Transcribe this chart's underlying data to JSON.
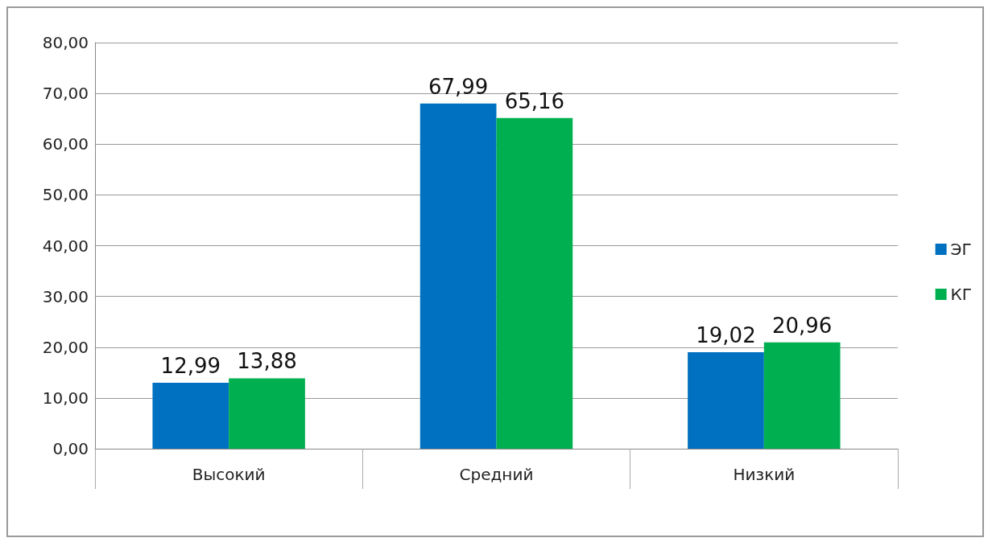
{
  "chart_data": {
    "type": "bar",
    "categories": [
      "Высокий",
      "Средний",
      "Низкий"
    ],
    "series": [
      {
        "name": "ЭГ",
        "color": "#0070c0",
        "values": [
          12.99,
          67.99,
          19.02
        ],
        "value_labels": [
          "12,99",
          "67,99",
          "19,02"
        ]
      },
      {
        "name": "КГ",
        "color": "#00b050",
        "values": [
          13.88,
          65.16,
          20.96
        ],
        "value_labels": [
          "13,88",
          "65,16",
          "20,96"
        ]
      }
    ],
    "ylim": [
      0,
      80
    ],
    "yticks": [
      {
        "value": 0,
        "label": "0,00"
      },
      {
        "value": 10,
        "label": "10,00"
      },
      {
        "value": 20,
        "label": "20,00"
      },
      {
        "value": 30,
        "label": "30,00"
      },
      {
        "value": 40,
        "label": "40,00"
      },
      {
        "value": 50,
        "label": "50,00"
      },
      {
        "value": 60,
        "label": "60,00"
      },
      {
        "value": 70,
        "label": "70,00"
      },
      {
        "value": 80,
        "label": "80,00"
      }
    ],
    "grid": "y",
    "legend": "right"
  }
}
